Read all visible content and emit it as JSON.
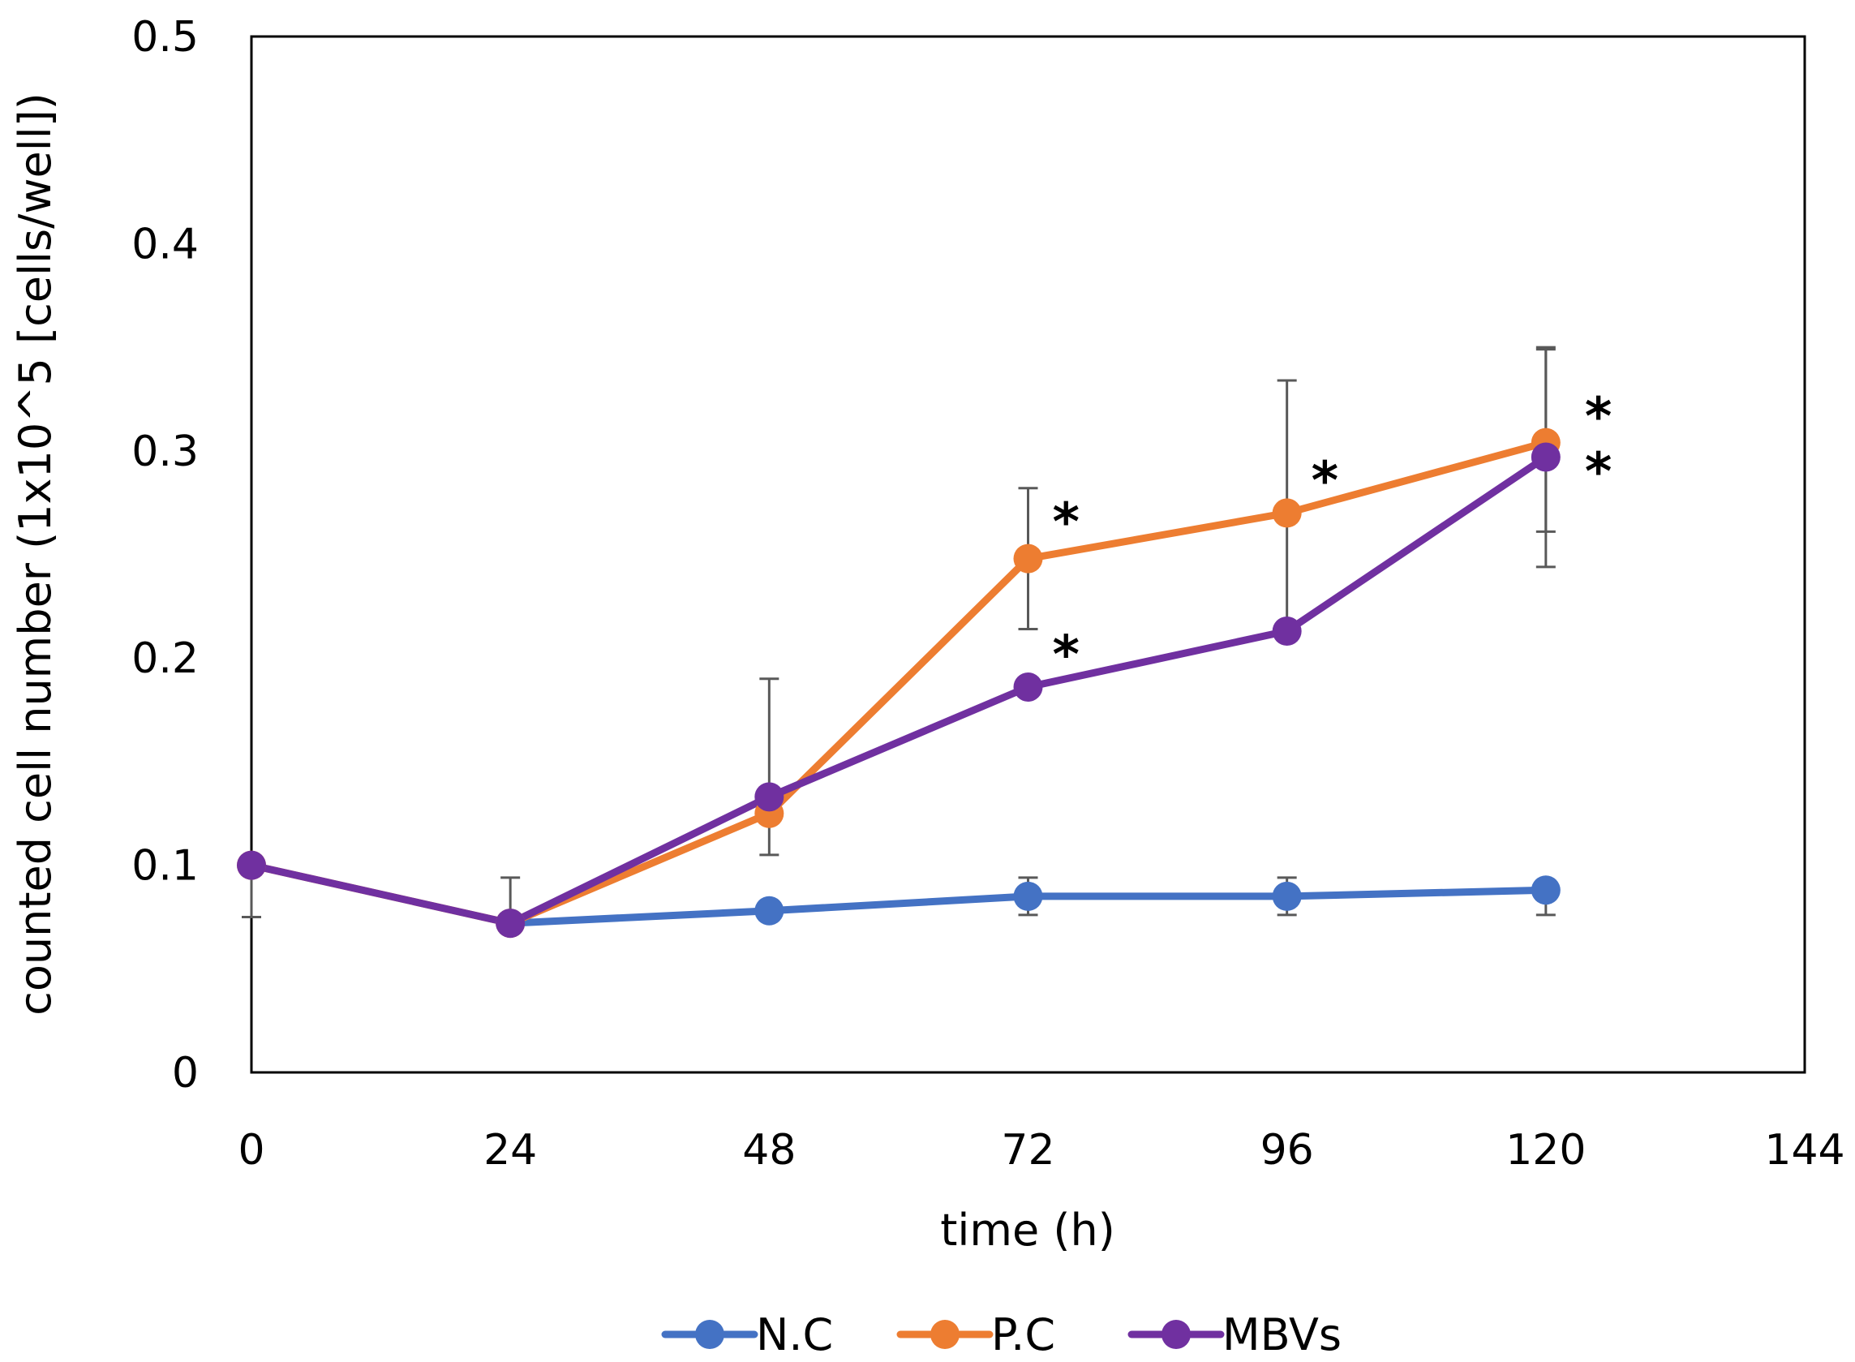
{
  "chart_data": {
    "type": "line",
    "title": "",
    "xlabel": "time (h)",
    "ylabel": "counted cell number  (1x10^5 [cells/well])",
    "xlim": [
      0,
      144
    ],
    "ylim": [
      0,
      0.5
    ],
    "x_ticks": [
      0,
      24,
      48,
      72,
      96,
      120,
      144
    ],
    "y_ticks": [
      0,
      0.1,
      0.2,
      0.3,
      0.4,
      0.5
    ],
    "x_tick_labels": [
      "0",
      "24",
      "48",
      "72",
      "96",
      "120",
      "144"
    ],
    "y_tick_labels": [
      "0",
      "0.1",
      "0.2",
      "0.3",
      "0.4",
      "0.5"
    ],
    "grid": false,
    "legend_position": "bottom",
    "series": [
      {
        "name": "N.C",
        "color": "#4472C4",
        "x": [
          24,
          48,
          72,
          96,
          120
        ],
        "values": [
          0.072,
          0.078,
          0.085,
          0.085,
          0.088
        ],
        "err_low": [
          0,
          0,
          0.009,
          0.009,
          0.012
        ],
        "err_high": [
          0,
          0,
          0.009,
          0.009,
          0.0
        ]
      },
      {
        "name": "P.C",
        "color": "#ED7D31",
        "x": [
          0,
          24,
          48,
          72,
          96,
          120
        ],
        "values": [
          0.1,
          0.072,
          0.125,
          0.248,
          0.27,
          0.304
        ],
        "err_low": [
          0,
          0,
          0,
          0.034,
          0,
          0.06
        ],
        "err_high": [
          0,
          0,
          0,
          0.034,
          0,
          0.046
        ]
      },
      {
        "name": "MBVs",
        "color": "#7030A0",
        "x": [
          0,
          24,
          48,
          72,
          96,
          120
        ],
        "values": [
          0.1,
          0.072,
          0.133,
          0.186,
          0.213,
          0.297
        ],
        "err_low": [
          0.025,
          0,
          0.028,
          0,
          0,
          0.036
        ],
        "err_high": [
          0,
          0.022,
          0.057,
          0,
          0.121,
          0.052
        ]
      }
    ],
    "annotations": [
      {
        "text": "*",
        "x": 72,
        "y": 0.25,
        "side": "above-right"
      },
      {
        "text": "*",
        "x": 72,
        "y": 0.186,
        "side": "above-right"
      },
      {
        "text": "*",
        "x": 96,
        "y": 0.27,
        "side": "above-right"
      },
      {
        "text": "*",
        "x": 120,
        "y": 0.304,
        "side": "above-right"
      },
      {
        "text": "*",
        "x": 120,
        "y": 0.297,
        "side": "right"
      }
    ]
  }
}
